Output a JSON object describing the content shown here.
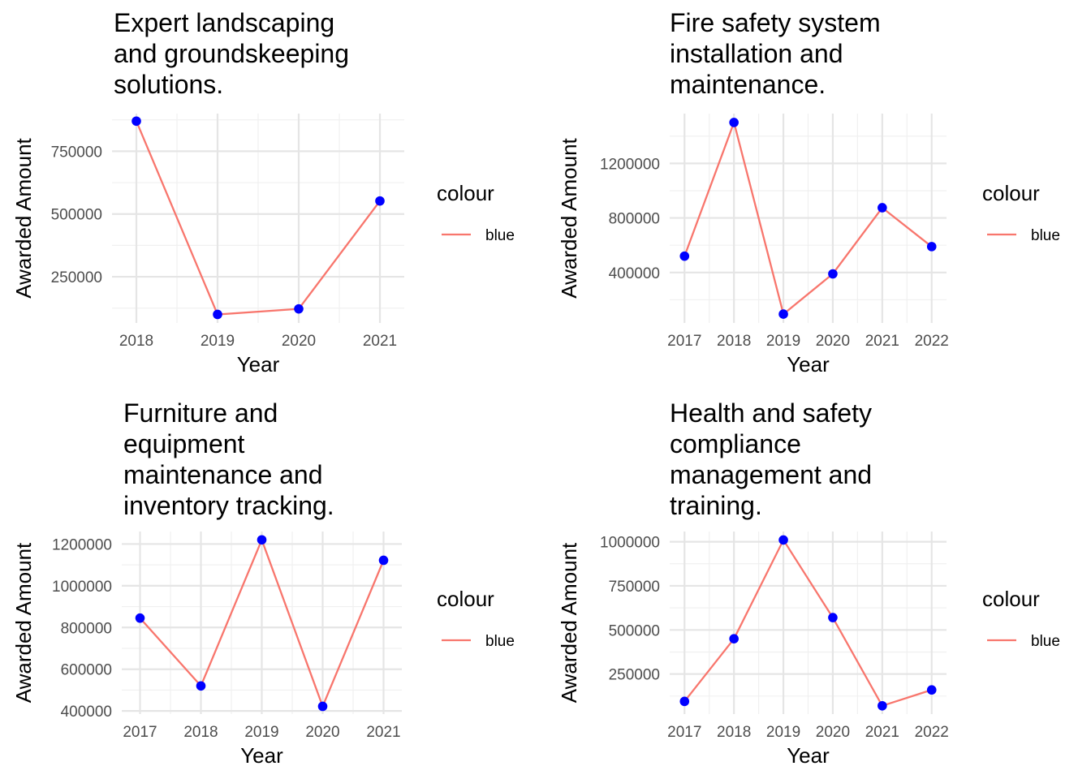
{
  "chart_data": [
    {
      "type": "line",
      "title": [
        "Expert landscaping",
        "and groundskeeping",
        "solutions."
      ],
      "xlabel": "Year",
      "ylabel": "Awarded Amount",
      "x": [
        2018,
        2019,
        2020,
        2021
      ],
      "series": [
        {
          "name": "blue",
          "values": [
            870000,
            100000,
            122000,
            552000
          ]
        }
      ],
      "xticks": [
        2018,
        2019,
        2020,
        2021
      ],
      "yticks": [
        250000,
        500000,
        750000
      ],
      "ylim": [
        66000,
        900000
      ],
      "grid": true,
      "legend": {
        "title": "colour",
        "position": "right"
      },
      "colors": {
        "line": "#F8766D",
        "points": "#0000FF"
      }
    },
    {
      "type": "line",
      "title": [
        "Fire safety system",
        "installation and",
        "maintenance."
      ],
      "xlabel": "Year",
      "ylabel": "Awarded Amount",
      "x": [
        2017,
        2018,
        2019,
        2020,
        2021,
        2022
      ],
      "series": [
        {
          "name": "blue",
          "values": [
            520000,
            1500000,
            95000,
            390000,
            875000,
            590000
          ]
        }
      ],
      "xticks": [
        2017,
        2018,
        2019,
        2020,
        2021,
        2022
      ],
      "yticks": [
        400000,
        800000,
        1200000
      ],
      "ylim": [
        30000,
        1565000
      ],
      "grid": true,
      "legend": {
        "title": "colour",
        "position": "right"
      },
      "colors": {
        "line": "#F8766D",
        "points": "#0000FF"
      }
    },
    {
      "type": "line",
      "title": [
        "Furniture and",
        "equipment",
        "maintenance and",
        "inventory tracking."
      ],
      "xlabel": "Year",
      "ylabel": "Awarded Amount",
      "x": [
        2017,
        2018,
        2019,
        2020,
        2021
      ],
      "series": [
        {
          "name": "blue",
          "values": [
            845000,
            520000,
            1220000,
            422000,
            1122000
          ]
        }
      ],
      "xticks": [
        2017,
        2018,
        2019,
        2020,
        2021
      ],
      "yticks": [
        400000,
        600000,
        800000,
        1000000,
        1200000
      ],
      "ylim": [
        385000,
        1260000
      ],
      "grid": true,
      "legend": {
        "title": "colour",
        "position": "right"
      },
      "colors": {
        "line": "#F8766D",
        "points": "#0000FF"
      }
    },
    {
      "type": "line",
      "title": [
        "Health and safety",
        "compliance",
        "management and",
        "training."
      ],
      "xlabel": "Year",
      "ylabel": "Awarded Amount",
      "x": [
        2017,
        2018,
        2019,
        2020,
        2021,
        2022
      ],
      "series": [
        {
          "name": "blue",
          "values": [
            95000,
            450000,
            1010000,
            570000,
            70000,
            160000
          ]
        }
      ],
      "xticks": [
        2017,
        2018,
        2019,
        2020,
        2021,
        2022
      ],
      "yticks": [
        250000,
        500000,
        750000,
        1000000
      ],
      "ylim": [
        23000,
        1058000
      ],
      "grid": true,
      "legend": {
        "title": "colour",
        "position": "right"
      },
      "colors": {
        "line": "#F8766D",
        "points": "#0000FF"
      }
    }
  ]
}
